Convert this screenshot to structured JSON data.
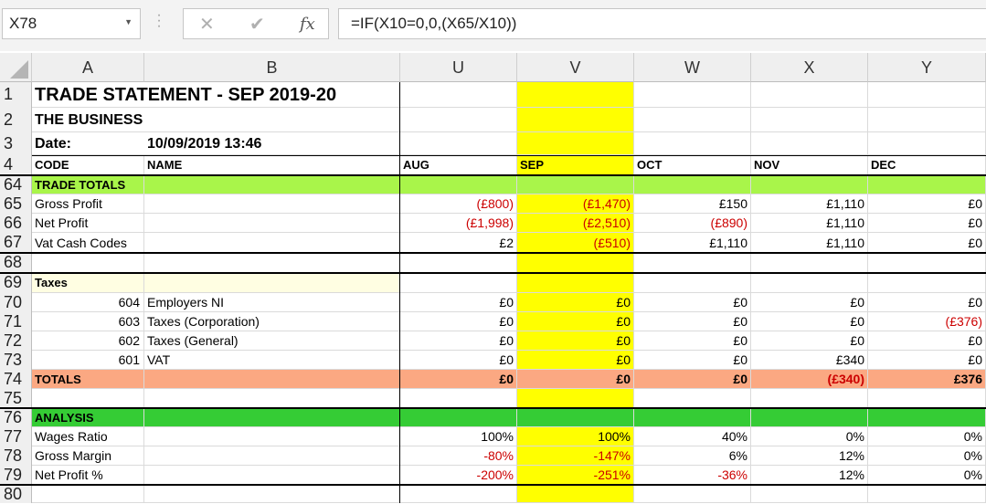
{
  "formula_bar": {
    "name_box": "X78",
    "formula": "=IF(X10=0,0,(X65/X10))",
    "fx_label": "fx"
  },
  "columns": [
    "A",
    "B",
    "U",
    "V",
    "W",
    "X",
    "Y"
  ],
  "rows": [
    {
      "num": "1",
      "a": "TRADE STATEMENT - SEP 2019-20",
      "b": "",
      "vals": [
        "",
        "",
        "",
        "",
        ""
      ],
      "style": "title"
    },
    {
      "num": "2",
      "a": "THE BUSINESS",
      "b": "",
      "vals": [
        "",
        "",
        "",
        "",
        ""
      ],
      "style": "subtitle"
    },
    {
      "num": "3",
      "a": "Date:",
      "b": "10/09/2019 13:46",
      "vals": [
        "",
        "",
        "",
        "",
        ""
      ],
      "style": "subtitle"
    },
    {
      "num": "4",
      "a": "CODE",
      "b": "NAME",
      "vals": [
        "AUG",
        "SEP",
        "OCT",
        "NOV",
        "DEC"
      ],
      "style": "header"
    },
    {
      "num": "64",
      "a": "TRADE TOTALS",
      "b": "",
      "vals": [
        "",
        "",
        "",
        "",
        ""
      ],
      "style": "section-lime"
    },
    {
      "num": "65",
      "a": "Gross Profit",
      "b": "",
      "vals": [
        "(£800)",
        "(£1,470)",
        "£150",
        "£1,110",
        "£0"
      ],
      "neg": [
        true,
        true,
        false,
        false,
        false
      ],
      "style": "data"
    },
    {
      "num": "66",
      "a": "Net Profit",
      "b": "",
      "vals": [
        "(£1,998)",
        "(£2,510)",
        "(£890)",
        "£1,110",
        "£0"
      ],
      "neg": [
        true,
        true,
        true,
        false,
        false
      ],
      "style": "data"
    },
    {
      "num": "67",
      "a": "Vat Cash Codes",
      "b": "",
      "vals": [
        "£2",
        "(£510)",
        "£1,110",
        "£1,110",
        "£0"
      ],
      "neg": [
        false,
        true,
        false,
        false,
        false
      ],
      "style": "data"
    },
    {
      "num": "68",
      "a": "",
      "b": "",
      "vals": [
        "",
        "",
        "",
        "",
        ""
      ],
      "style": "blank"
    },
    {
      "num": "69",
      "a": "Taxes",
      "b": "",
      "vals": [
        "",
        "",
        "",
        "",
        ""
      ],
      "style": "section-cream"
    },
    {
      "num": "70",
      "a": "604",
      "b": "Employers NI",
      "vals": [
        "£0",
        "£0",
        "£0",
        "£0",
        "£0"
      ],
      "neg": [
        false,
        false,
        false,
        false,
        false
      ],
      "style": "code"
    },
    {
      "num": "71",
      "a": "603",
      "b": "Taxes (Corporation)",
      "vals": [
        "£0",
        "£0",
        "£0",
        "£0",
        "(£376)"
      ],
      "neg": [
        false,
        false,
        false,
        false,
        true
      ],
      "style": "code"
    },
    {
      "num": "72",
      "a": "602",
      "b": "Taxes (General)",
      "vals": [
        "£0",
        "£0",
        "£0",
        "£0",
        "£0"
      ],
      "neg": [
        false,
        false,
        false,
        false,
        false
      ],
      "style": "code"
    },
    {
      "num": "73",
      "a": "601",
      "b": "VAT",
      "vals": [
        "£0",
        "£0",
        "£0",
        "£340",
        "£0"
      ],
      "neg": [
        false,
        false,
        false,
        false,
        false
      ],
      "style": "code"
    },
    {
      "num": "74",
      "a": "TOTALS",
      "b": "",
      "vals": [
        "£0",
        "£0",
        "£0",
        "(£340)",
        "£376"
      ],
      "neg": [
        false,
        false,
        false,
        true,
        false
      ],
      "style": "totals"
    },
    {
      "num": "75",
      "a": "",
      "b": "",
      "vals": [
        "",
        "",
        "",
        "",
        ""
      ],
      "style": "blank"
    },
    {
      "num": "76",
      "a": "ANALYSIS",
      "b": "",
      "vals": [
        "",
        "",
        "",
        "",
        ""
      ],
      "style": "section-green"
    },
    {
      "num": "77",
      "a": "Wages Ratio",
      "b": "",
      "vals": [
        "100%",
        "100%",
        "40%",
        "0%",
        "0%"
      ],
      "neg": [
        false,
        false,
        false,
        false,
        false
      ],
      "style": "data"
    },
    {
      "num": "78",
      "a": "Gross Margin",
      "b": "",
      "vals": [
        "-80%",
        "-147%",
        "6%",
        "12%",
        "0%"
      ],
      "neg": [
        true,
        true,
        false,
        false,
        false
      ],
      "style": "data"
    },
    {
      "num": "79",
      "a": "Net Profit %",
      "b": "",
      "vals": [
        "-200%",
        "-251%",
        "-36%",
        "12%",
        "0%"
      ],
      "neg": [
        true,
        true,
        true,
        false,
        false
      ],
      "style": "data"
    },
    {
      "num": "80",
      "a": "",
      "b": "",
      "vals": [
        "",
        "",
        "",
        "",
        ""
      ],
      "style": "blank"
    }
  ],
  "colors": {
    "highlight_column": "#ffff00",
    "section_lime": "#a9f54a",
    "section_green": "#35cc35",
    "section_cream": "#fffee2",
    "totals": "#fba882",
    "negative": "#cc0000"
  }
}
